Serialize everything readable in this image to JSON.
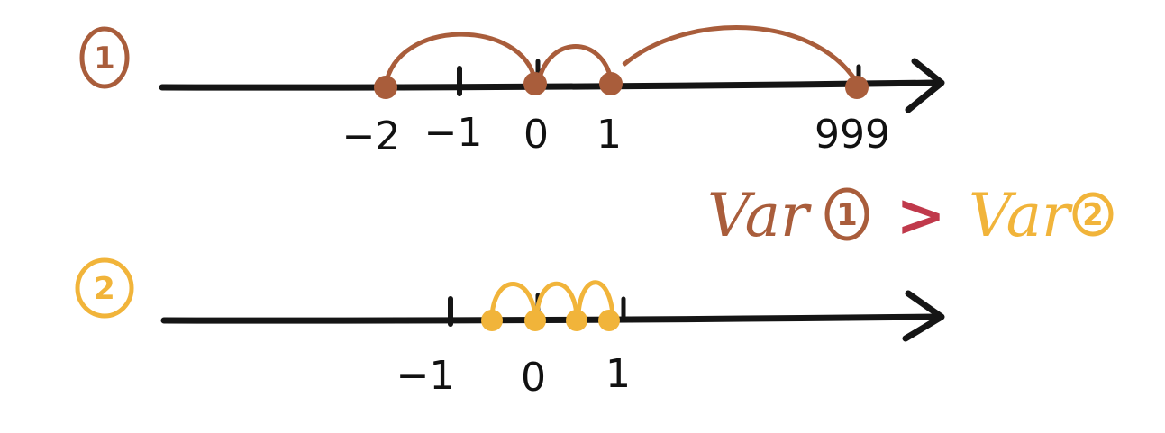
{
  "colors": {
    "line": "#151515",
    "series1": "#a95d3b",
    "series2": "#f1b43a",
    "comparison": "#c0394b"
  },
  "diagram1": {
    "marker": "1",
    "tick_labels": [
      "−2",
      "−1",
      "0",
      "1",
      "999"
    ],
    "points": [
      -2,
      0,
      1,
      999
    ]
  },
  "diagram2": {
    "marker": "2",
    "tick_labels": [
      "−1",
      "0",
      "1"
    ],
    "points": [
      -0.5,
      0,
      0.5,
      1
    ]
  },
  "comparison": {
    "left": "Var",
    "left_marker": "1",
    "operator": ">",
    "right": "Var",
    "right_marker": "2"
  }
}
